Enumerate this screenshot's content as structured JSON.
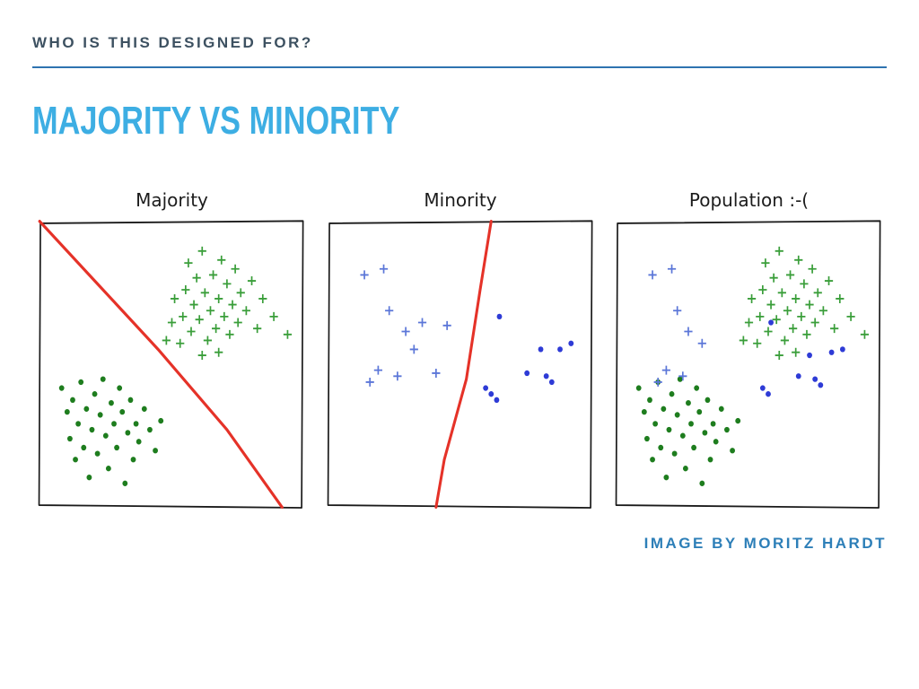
{
  "slide": {
    "header": "WHO IS THIS DESIGNED FOR?",
    "title": "MAJORITY VS MINORITY",
    "caption": "IMAGE BY MORITZ HARDT"
  },
  "colors": {
    "header_text": "#3d5161",
    "rule": "#2e73b0",
    "title": "#3daee3",
    "caption": "#2d7fb8",
    "panel_border": "#1a1a1a",
    "green_plus": "#3a9e3a",
    "green_dot": "#1e7d1e",
    "blue_plus": "#5b76d8",
    "blue_dot": "#2e3bd6",
    "boundary_red": "#e53228"
  },
  "chart_data": [
    {
      "type": "scatter",
      "title": "Majority",
      "x_range": [
        0,
        100
      ],
      "y_range": [
        0,
        100
      ],
      "grid": false,
      "legend": "none",
      "series": [
        {
          "name": "majority-positive-class",
          "marker": "plus",
          "color_key": "green_plus",
          "points": [
            [
              48,
              58
            ],
            [
              50,
              64
            ],
            [
              51,
              72
            ],
            [
              53,
              57
            ],
            [
              54,
              66
            ],
            [
              55,
              75
            ],
            [
              56,
              84
            ],
            [
              57,
              61
            ],
            [
              58,
              70
            ],
            [
              59,
              79
            ],
            [
              60,
              65
            ],
            [
              61,
              88
            ],
            [
              62,
              74
            ],
            [
              63,
              58
            ],
            [
              64,
              68
            ],
            [
              65,
              80
            ],
            [
              66,
              62
            ],
            [
              67,
              72
            ],
            [
              68,
              85
            ],
            [
              69,
              66
            ],
            [
              70,
              77
            ],
            [
              71,
              60
            ],
            [
              72,
              70
            ],
            [
              73,
              82
            ],
            [
              74,
              64
            ],
            [
              75,
              74
            ],
            [
              77,
              68
            ],
            [
              79,
              78
            ],
            [
              81,
              62
            ],
            [
              83,
              72
            ],
            [
              87,
              66
            ],
            [
              92,
              60
            ],
            [
              61,
              53
            ],
            [
              67,
              54
            ]
          ]
        },
        {
          "name": "majority-negative-class",
          "marker": "dot",
          "color_key": "green_dot",
          "points": [
            [
              10,
              42
            ],
            [
              12,
              34
            ],
            [
              13,
              25
            ],
            [
              14,
              38
            ],
            [
              15,
              18
            ],
            [
              16,
              30
            ],
            [
              17,
              44
            ],
            [
              18,
              22
            ],
            [
              19,
              35
            ],
            [
              20,
              12
            ],
            [
              21,
              28
            ],
            [
              22,
              40
            ],
            [
              23,
              20
            ],
            [
              24,
              33
            ],
            [
              25,
              45
            ],
            [
              26,
              26
            ],
            [
              27,
              15
            ],
            [
              28,
              37
            ],
            [
              29,
              30
            ],
            [
              30,
              22
            ],
            [
              31,
              42
            ],
            [
              32,
              34
            ],
            [
              33,
              10
            ],
            [
              34,
              27
            ],
            [
              35,
              38
            ],
            [
              36,
              18
            ],
            [
              37,
              30
            ],
            [
              38,
              24
            ],
            [
              40,
              35
            ],
            [
              42,
              28
            ],
            [
              44,
              21
            ],
            [
              46,
              31
            ]
          ]
        }
      ],
      "boundary": {
        "name": "majority-decision-boundary",
        "color_key": "boundary_red",
        "points": [
          [
            2,
            98
          ],
          [
            22,
            78
          ],
          [
            45,
            55
          ],
          [
            70,
            28
          ],
          [
            90,
            2
          ]
        ]
      }
    },
    {
      "type": "scatter",
      "title": "Minority",
      "x_range": [
        0,
        100
      ],
      "y_range": [
        0,
        100
      ],
      "grid": false,
      "legend": "none",
      "series": [
        {
          "name": "minority-positive-class",
          "marker": "plus",
          "color_key": "blue_plus",
          "points": [
            [
              15,
              80
            ],
            [
              22,
              82
            ],
            [
              24,
              68
            ],
            [
              30,
              61
            ],
            [
              36,
              64
            ],
            [
              45,
              63
            ],
            [
              33,
              55
            ],
            [
              20,
              48
            ],
            [
              27,
              46
            ],
            [
              17,
              44
            ],
            [
              41,
              47
            ]
          ]
        },
        {
          "name": "minority-negative-class",
          "marker": "dot",
          "color_key": "blue_dot",
          "points": [
            [
              64,
              66
            ],
            [
              79,
              55
            ],
            [
              90,
              57
            ],
            [
              74,
              47
            ],
            [
              81,
              46
            ],
            [
              83,
              44
            ],
            [
              59,
              42
            ],
            [
              61,
              40
            ],
            [
              63,
              38
            ],
            [
              86,
              55
            ]
          ]
        }
      ],
      "boundary": {
        "name": "minority-decision-boundary",
        "color_key": "boundary_red",
        "points": [
          [
            61,
            98
          ],
          [
            57,
            75
          ],
          [
            52,
            45
          ],
          [
            44,
            18
          ],
          [
            41,
            2
          ]
        ]
      }
    },
    {
      "type": "scatter",
      "title": "Population :-(",
      "x_range": [
        0,
        100
      ],
      "y_range": [
        0,
        100
      ],
      "grid": false,
      "legend": "none",
      "series": [
        {
          "name": "majority-positive-class",
          "marker": "plus",
          "color_key": "green_plus",
          "points": [
            [
              48,
              58
            ],
            [
              50,
              64
            ],
            [
              51,
              72
            ],
            [
              53,
              57
            ],
            [
              54,
              66
            ],
            [
              55,
              75
            ],
            [
              56,
              84
            ],
            [
              57,
              61
            ],
            [
              58,
              70
            ],
            [
              59,
              79
            ],
            [
              60,
              65
            ],
            [
              61,
              88
            ],
            [
              62,
              74
            ],
            [
              63,
              58
            ],
            [
              64,
              68
            ],
            [
              65,
              80
            ],
            [
              66,
              62
            ],
            [
              67,
              72
            ],
            [
              68,
              85
            ],
            [
              69,
              66
            ],
            [
              70,
              77
            ],
            [
              71,
              60
            ],
            [
              72,
              70
            ],
            [
              73,
              82
            ],
            [
              74,
              64
            ],
            [
              75,
              74
            ],
            [
              77,
              68
            ],
            [
              79,
              78
            ],
            [
              81,
              62
            ],
            [
              83,
              72
            ],
            [
              87,
              66
            ],
            [
              92,
              60
            ],
            [
              61,
              53
            ],
            [
              67,
              54
            ]
          ]
        },
        {
          "name": "majority-negative-class",
          "marker": "dot",
          "color_key": "green_dot",
          "points": [
            [
              10,
              42
            ],
            [
              12,
              34
            ],
            [
              13,
              25
            ],
            [
              14,
              38
            ],
            [
              15,
              18
            ],
            [
              16,
              30
            ],
            [
              17,
              44
            ],
            [
              18,
              22
            ],
            [
              19,
              35
            ],
            [
              20,
              12
            ],
            [
              21,
              28
            ],
            [
              22,
              40
            ],
            [
              23,
              20
            ],
            [
              24,
              33
            ],
            [
              25,
              45
            ],
            [
              26,
              26
            ],
            [
              27,
              15
            ],
            [
              28,
              37
            ],
            [
              29,
              30
            ],
            [
              30,
              22
            ],
            [
              31,
              42
            ],
            [
              32,
              34
            ],
            [
              33,
              10
            ],
            [
              34,
              27
            ],
            [
              35,
              38
            ],
            [
              36,
              18
            ],
            [
              37,
              30
            ],
            [
              38,
              24
            ],
            [
              40,
              35
            ],
            [
              42,
              28
            ],
            [
              44,
              21
            ],
            [
              46,
              31
            ]
          ]
        },
        {
          "name": "minority-positive-class",
          "marker": "plus",
          "color_key": "blue_plus",
          "points": [
            [
              15,
              80
            ],
            [
              22,
              82
            ],
            [
              24,
              68
            ],
            [
              28,
              61
            ],
            [
              33,
              57
            ],
            [
              20,
              48
            ],
            [
              26,
              46
            ],
            [
              17,
              44
            ]
          ]
        },
        {
          "name": "minority-negative-class",
          "marker": "dot",
          "color_key": "blue_dot",
          "points": [
            [
              58,
              64
            ],
            [
              72,
              53
            ],
            [
              84,
              55
            ],
            [
              68,
              46
            ],
            [
              74,
              45
            ],
            [
              76,
              43
            ],
            [
              55,
              42
            ],
            [
              57,
              40
            ],
            [
              80,
              54
            ]
          ]
        }
      ]
    }
  ]
}
